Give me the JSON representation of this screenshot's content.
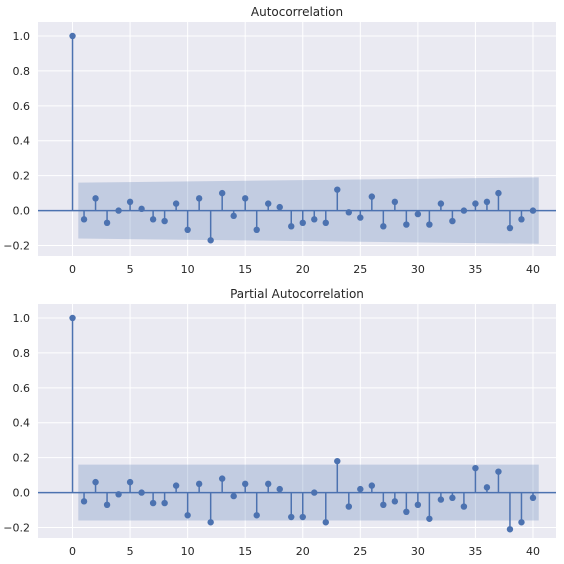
{
  "chart_data": [
    {
      "type": "stem",
      "title": "Autocorrelation",
      "xlabel": "",
      "ylabel": "",
      "xlim": [
        -3,
        42
      ],
      "ylim": [
        -0.26,
        1.08
      ],
      "xticks": [
        0,
        5,
        10,
        15,
        20,
        25,
        30,
        35,
        40
      ],
      "yticks": [
        -0.2,
        0.0,
        0.2,
        0.4,
        0.6,
        0.8,
        1.0
      ],
      "ytick_labels": [
        "−0.2",
        "0.0",
        "0.2",
        "0.4",
        "0.6",
        "0.8",
        "1.0"
      ],
      "grid": true,
      "lags": [
        0,
        1,
        2,
        3,
        4,
        5,
        6,
        7,
        8,
        9,
        10,
        11,
        12,
        13,
        14,
        15,
        16,
        17,
        18,
        19,
        20,
        21,
        22,
        23,
        24,
        25,
        26,
        27,
        28,
        29,
        30,
        31,
        32,
        33,
        34,
        35,
        36,
        37,
        38,
        39,
        40
      ],
      "values": [
        1.0,
        -0.05,
        0.07,
        -0.07,
        0.0,
        0.05,
        0.01,
        -0.05,
        -0.06,
        0.04,
        -0.11,
        0.07,
        -0.17,
        0.1,
        -0.03,
        0.07,
        -0.11,
        0.04,
        0.02,
        -0.09,
        -0.07,
        -0.05,
        -0.07,
        0.12,
        -0.01,
        -0.04,
        0.08,
        -0.09,
        0.05,
        -0.08,
        -0.02,
        -0.08,
        0.04,
        -0.06,
        0.0,
        0.04,
        0.05,
        0.1,
        -0.1,
        -0.05,
        0.0
      ],
      "confidence_band": {
        "lags": [
          0.5,
          40.5
        ],
        "upper": [
          0.16,
          0.19
        ],
        "lower": [
          -0.16,
          -0.19
        ]
      }
    },
    {
      "type": "stem",
      "title": "Partial Autocorrelation",
      "xlabel": "",
      "ylabel": "",
      "xlim": [
        -3,
        42
      ],
      "ylim": [
        -0.26,
        1.08
      ],
      "xticks": [
        0,
        5,
        10,
        15,
        20,
        25,
        30,
        35,
        40
      ],
      "yticks": [
        -0.2,
        0.0,
        0.2,
        0.4,
        0.6,
        0.8,
        1.0
      ],
      "ytick_labels": [
        "−0.2",
        "0.0",
        "0.2",
        "0.4",
        "0.6",
        "0.8",
        "1.0"
      ],
      "grid": true,
      "lags": [
        0,
        1,
        2,
        3,
        4,
        5,
        6,
        7,
        8,
        9,
        10,
        11,
        12,
        13,
        14,
        15,
        16,
        17,
        18,
        19,
        20,
        21,
        22,
        23,
        24,
        25,
        26,
        27,
        28,
        29,
        30,
        31,
        32,
        33,
        34,
        35,
        36,
        37,
        38,
        39,
        40
      ],
      "values": [
        1.0,
        -0.05,
        0.06,
        -0.07,
        -0.01,
        0.06,
        0.0,
        -0.06,
        -0.06,
        0.04,
        -0.13,
        0.05,
        -0.17,
        0.08,
        -0.02,
        0.05,
        -0.13,
        0.05,
        0.02,
        -0.14,
        -0.14,
        0.0,
        -0.17,
        0.18,
        -0.08,
        0.02,
        0.04,
        -0.07,
        -0.05,
        -0.11,
        -0.07,
        -0.15,
        -0.04,
        -0.03,
        -0.08,
        0.14,
        0.03,
        0.12,
        -0.21,
        -0.17,
        -0.03
      ],
      "confidence_band": {
        "lags": [
          0.5,
          40.5
        ],
        "upper": [
          0.16,
          0.16
        ],
        "lower": [
          -0.16,
          -0.16
        ]
      }
    }
  ],
  "colors": {
    "stem": "#4c72b0",
    "band": "#4c72b0",
    "axes_bg": "#eaeaf2",
    "grid": "#ffffff",
    "text": "#262626"
  }
}
